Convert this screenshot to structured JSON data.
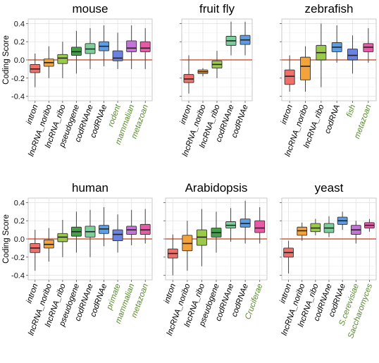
{
  "colors": {
    "background": "#ffffff",
    "panel_background": "#ffffff",
    "grid_major": "#e3e3e3",
    "grid_minor": "#f2f2f2",
    "zero_line": "#d45a3c",
    "label_default": "#000000",
    "label_species": "#5a8a2e",
    "box_outline": "#333333",
    "whisker": "#444444",
    "median": "#222222",
    "category_fill": {
      "intron": "#ef6f6a",
      "lncRNA_noribo": "#f2a33c",
      "lncRNA_ribo": "#9bc94a",
      "pseudogene": "#43a047",
      "codRNAne": "#7ccf9a",
      "codRNAe": "#5b9ee6",
      "group1": "#6b82e0",
      "group2": "#c374d6",
      "group3": "#e75aa6"
    }
  },
  "chart_data": [
    {
      "type": "box",
      "title": "mouse",
      "ylabel": "Coding Score",
      "ylim": [
        -0.45,
        0.45
      ],
      "yticks": [
        -0.4,
        -0.2,
        0.0,
        0.2,
        0.4
      ],
      "ytick_labels": [
        "-0.4",
        "-0.2",
        "0.0",
        "0.2",
        "0.4"
      ],
      "grid": true,
      "reference_line": 0,
      "categories": [
        {
          "label": "intron",
          "label_color": "default",
          "fill": "intron",
          "whisker_low": -0.3,
          "q1": -0.14,
          "median": -0.1,
          "q3": -0.05,
          "whisker_high": 0.07
        },
        {
          "label": "lncRNA_noribo",
          "label_color": "default",
          "fill": "lncRNA_noribo",
          "whisker_low": -0.2,
          "q1": -0.07,
          "median": -0.03,
          "q3": 0.01,
          "whisker_high": 0.15
        },
        {
          "label": "lncRNA_ribo",
          "label_color": "default",
          "fill": "lncRNA_ribo",
          "whisker_low": -0.2,
          "q1": -0.04,
          "median": 0.02,
          "q3": 0.06,
          "whisker_high": 0.2
        },
        {
          "label": "pseudogene",
          "label_color": "default",
          "fill": "pseudogene",
          "whisker_low": -0.15,
          "q1": 0.05,
          "median": 0.09,
          "q3": 0.14,
          "whisker_high": 0.32
        },
        {
          "label": "codRNAne",
          "label_color": "default",
          "fill": "codRNAne",
          "whisker_low": -0.1,
          "q1": 0.07,
          "median": 0.12,
          "q3": 0.18,
          "whisker_high": 0.35
        },
        {
          "label": "codRNAe",
          "label_color": "default",
          "fill": "codRNAe",
          "whisker_low": -0.07,
          "q1": 0.1,
          "median": 0.15,
          "q3": 0.2,
          "whisker_high": 0.38
        },
        {
          "label": "rodent",
          "label_color": "species",
          "fill": "group1",
          "whisker_low": -0.1,
          "q1": -0.01,
          "median": 0.02,
          "q3": 0.1,
          "whisker_high": 0.3
        },
        {
          "label": "mammalian",
          "label_color": "species",
          "fill": "group2",
          "whisker_low": -0.1,
          "q1": 0.09,
          "median": 0.13,
          "q3": 0.21,
          "whisker_high": 0.38
        },
        {
          "label": "metazoan",
          "label_color": "species",
          "fill": "group3",
          "whisker_low": -0.1,
          "q1": 0.09,
          "median": 0.13,
          "q3": 0.2,
          "whisker_high": 0.35
        }
      ]
    },
    {
      "type": "box",
      "title": "fruit fly",
      "ylabel": "",
      "ylim": [
        -0.45,
        0.45
      ],
      "yticks": [
        -0.4,
        -0.2,
        0.0,
        0.2,
        0.4
      ],
      "ytick_labels": [],
      "grid": true,
      "reference_line": 0,
      "categories": [
        {
          "label": "intron",
          "label_color": "default",
          "fill": "intron",
          "whisker_low": -0.37,
          "q1": -0.25,
          "median": -0.21,
          "q3": -0.16,
          "whisker_high": 0.05
        },
        {
          "label": "lncRNA_noribo",
          "label_color": "default",
          "fill": "lncRNA_noribo",
          "whisker_low": -0.18,
          "q1": -0.15,
          "median": -0.13,
          "q3": -0.11,
          "whisker_high": -0.09
        },
        {
          "label": "lncRNA_ribo",
          "label_color": "default",
          "fill": "lncRNA_ribo",
          "whisker_low": -0.2,
          "q1": -0.09,
          "median": -0.05,
          "q3": -0.01,
          "whisker_high": 0.1
        },
        {
          "label": "codRNAne",
          "label_color": "default",
          "fill": "codRNAne",
          "whisker_low": 0.05,
          "q1": 0.16,
          "median": 0.21,
          "q3": 0.26,
          "whisker_high": 0.42
        },
        {
          "label": "codRNAe",
          "label_color": "default",
          "fill": "codRNAe",
          "whisker_low": 0.05,
          "q1": 0.17,
          "median": 0.22,
          "q3": 0.27,
          "whisker_high": 0.42
        }
      ]
    },
    {
      "type": "box",
      "title": "zebrafish",
      "ylabel": "",
      "ylim": [
        -0.45,
        0.45
      ],
      "yticks": [
        -0.4,
        -0.2,
        0.0,
        0.2,
        0.4
      ],
      "ytick_labels": [],
      "grid": true,
      "reference_line": 0,
      "categories": [
        {
          "label": "intron",
          "label_color": "default",
          "fill": "intron",
          "whisker_low": -0.35,
          "q1": -0.27,
          "median": -0.18,
          "q3": -0.11,
          "whisker_high": 0.05
        },
        {
          "label": "lncRNA_noribo",
          "label_color": "default",
          "fill": "lncRNA_noribo",
          "whisker_low": -0.35,
          "q1": -0.22,
          "median": -0.07,
          "q3": 0.03,
          "whisker_high": 0.15
        },
        {
          "label": "lncRNA_ribo",
          "label_color": "default",
          "fill": "lncRNA_ribo",
          "whisker_low": -0.3,
          "q1": 0.0,
          "median": 0.08,
          "q3": 0.16,
          "whisker_high": 0.4
        },
        {
          "label": "codRNA",
          "label_color": "default",
          "fill": "codRNAe",
          "whisker_low": -0.03,
          "q1": 0.09,
          "median": 0.14,
          "q3": 0.19,
          "whisker_high": 0.38
        },
        {
          "label": "fish",
          "label_color": "species",
          "fill": "group1",
          "whisker_low": -0.15,
          "q1": 0.0,
          "median": 0.05,
          "q3": 0.12,
          "whisker_high": 0.27
        },
        {
          "label": "metazoan",
          "label_color": "species",
          "fill": "group3",
          "whisker_low": -0.03,
          "q1": 0.09,
          "median": 0.14,
          "q3": 0.18,
          "whisker_high": 0.35
        }
      ]
    },
    {
      "type": "box",
      "title": "human",
      "ylabel": "Coding Score",
      "ylim": [
        -0.45,
        0.45
      ],
      "yticks": [
        -0.4,
        -0.2,
        0.0,
        0.2,
        0.4
      ],
      "ytick_labels": [
        "-0.4",
        "-0.2",
        "0.0",
        "0.2",
        "0.4"
      ],
      "grid": true,
      "reference_line": 0,
      "categories": [
        {
          "label": "intron",
          "label_color": "default",
          "fill": "intron",
          "whisker_low": -0.35,
          "q1": -0.15,
          "median": -0.1,
          "q3": -0.05,
          "whisker_high": 0.1
        },
        {
          "label": "lncRNA_noribo",
          "label_color": "default",
          "fill": "lncRNA_noribo",
          "whisker_low": -0.25,
          "q1": -0.1,
          "median": -0.06,
          "q3": -0.01,
          "whisker_high": 0.12
        },
        {
          "label": "lncRNA_ribo",
          "label_color": "default",
          "fill": "lncRNA_ribo",
          "whisker_low": -0.2,
          "q1": -0.03,
          "median": 0.02,
          "q3": 0.06,
          "whisker_high": 0.21
        },
        {
          "label": "pseudogene",
          "label_color": "default",
          "fill": "pseudogene",
          "whisker_low": -0.15,
          "q1": 0.03,
          "median": 0.08,
          "q3": 0.13,
          "whisker_high": 0.3
        },
        {
          "label": "codRNAne",
          "label_color": "default",
          "fill": "codRNAne",
          "whisker_low": -0.2,
          "q1": 0.02,
          "median": 0.08,
          "q3": 0.14,
          "whisker_high": 0.32
        },
        {
          "label": "codRNAe",
          "label_color": "default",
          "fill": "codRNAe",
          "whisker_low": -0.08,
          "q1": 0.06,
          "median": 0.11,
          "q3": 0.15,
          "whisker_high": 0.35
        },
        {
          "label": "primate",
          "label_color": "species",
          "fill": "group1",
          "whisker_low": -0.15,
          "q1": -0.02,
          "median": 0.05,
          "q3": 0.1,
          "whisker_high": 0.27
        },
        {
          "label": "mammalian",
          "label_color": "species",
          "fill": "group2",
          "whisker_low": -0.07,
          "q1": 0.05,
          "median": 0.1,
          "q3": 0.14,
          "whisker_high": 0.32
        },
        {
          "label": "metazoan",
          "label_color": "species",
          "fill": "group3",
          "whisker_low": -0.05,
          "q1": 0.05,
          "median": 0.1,
          "q3": 0.16,
          "whisker_high": 0.33
        }
      ]
    },
    {
      "type": "box",
      "title": "Arabidopsis",
      "ylabel": "",
      "ylim": [
        -0.45,
        0.45
      ],
      "yticks": [
        -0.4,
        -0.2,
        0.0,
        0.2,
        0.4
      ],
      "ytick_labels": [],
      "grid": true,
      "reference_line": 0,
      "categories": [
        {
          "label": "intron",
          "label_color": "default",
          "fill": "intron",
          "whisker_low": -0.4,
          "q1": -0.21,
          "median": -0.16,
          "q3": -0.11,
          "whisker_high": 0.05
        },
        {
          "label": "lncRNA_noribo",
          "label_color": "default",
          "fill": "lncRNA_noribo",
          "whisker_low": -0.35,
          "q1": -0.13,
          "median": -0.05,
          "q3": 0.04,
          "whisker_high": 0.2
        },
        {
          "label": "lncRNA_ribo",
          "label_color": "default",
          "fill": "lncRNA_ribo",
          "whisker_low": -0.3,
          "q1": -0.07,
          "median": 0.02,
          "q3": 0.1,
          "whisker_high": 0.33
        },
        {
          "label": "pseudogene",
          "label_color": "default",
          "fill": "pseudogene",
          "whisker_low": -0.15,
          "q1": 0.02,
          "median": 0.07,
          "q3": 0.12,
          "whisker_high": 0.3
        },
        {
          "label": "codRNAne",
          "label_color": "default",
          "fill": "codRNAne",
          "whisker_low": -0.03,
          "q1": 0.12,
          "median": 0.15,
          "q3": 0.19,
          "whisker_high": 0.34
        },
        {
          "label": "codRNAe",
          "label_color": "default",
          "fill": "codRNAe",
          "whisker_low": -0.05,
          "q1": 0.13,
          "median": 0.17,
          "q3": 0.22,
          "whisker_high": 0.42
        },
        {
          "label": "Cruciferae",
          "label_color": "species",
          "fill": "group3",
          "whisker_low": -0.05,
          "q1": 0.07,
          "median": 0.12,
          "q3": 0.2,
          "whisker_high": 0.35
        }
      ]
    },
    {
      "type": "box",
      "title": "yeast",
      "ylabel": "",
      "ylim": [
        -0.45,
        0.45
      ],
      "yticks": [
        -0.4,
        -0.2,
        0.0,
        0.2,
        0.4
      ],
      "ytick_labels": [],
      "grid": true,
      "reference_line": 0,
      "categories": [
        {
          "label": "intron",
          "label_color": "default",
          "fill": "intron",
          "whisker_low": -0.38,
          "q1": -0.2,
          "median": -0.15,
          "q3": -0.1,
          "whisker_high": -0.02
        },
        {
          "label": "lncRNA_noribo",
          "label_color": "default",
          "fill": "lncRNA_noribo",
          "whisker_low": -0.02,
          "q1": 0.04,
          "median": 0.09,
          "q3": 0.13,
          "whisker_high": 0.18
        },
        {
          "label": "lncRNA_ribo",
          "label_color": "default",
          "fill": "lncRNA_ribo",
          "whisker_low": 0.04,
          "q1": 0.08,
          "median": 0.12,
          "q3": 0.17,
          "whisker_high": 0.22
        },
        {
          "label": "codRNAne",
          "label_color": "default",
          "fill": "codRNAne",
          "whisker_low": 0.02,
          "q1": 0.07,
          "median": 0.12,
          "q3": 0.17,
          "whisker_high": 0.25
        },
        {
          "label": "codRNAe",
          "label_color": "default",
          "fill": "codRNAe",
          "whisker_low": 0.1,
          "q1": 0.16,
          "median": 0.2,
          "q3": 0.24,
          "whisker_high": 0.3
        },
        {
          "label": "S.cerevisiae",
          "label_color": "species",
          "fill": "group2",
          "whisker_low": -0.05,
          "q1": 0.05,
          "median": 0.1,
          "q3": 0.15,
          "whisker_high": 0.2
        },
        {
          "label": "Saccharomyces",
          "label_color": "species",
          "fill": "group3",
          "whisker_low": 0.08,
          "q1": 0.12,
          "median": 0.15,
          "q3": 0.18,
          "whisker_high": 0.22
        }
      ]
    }
  ]
}
